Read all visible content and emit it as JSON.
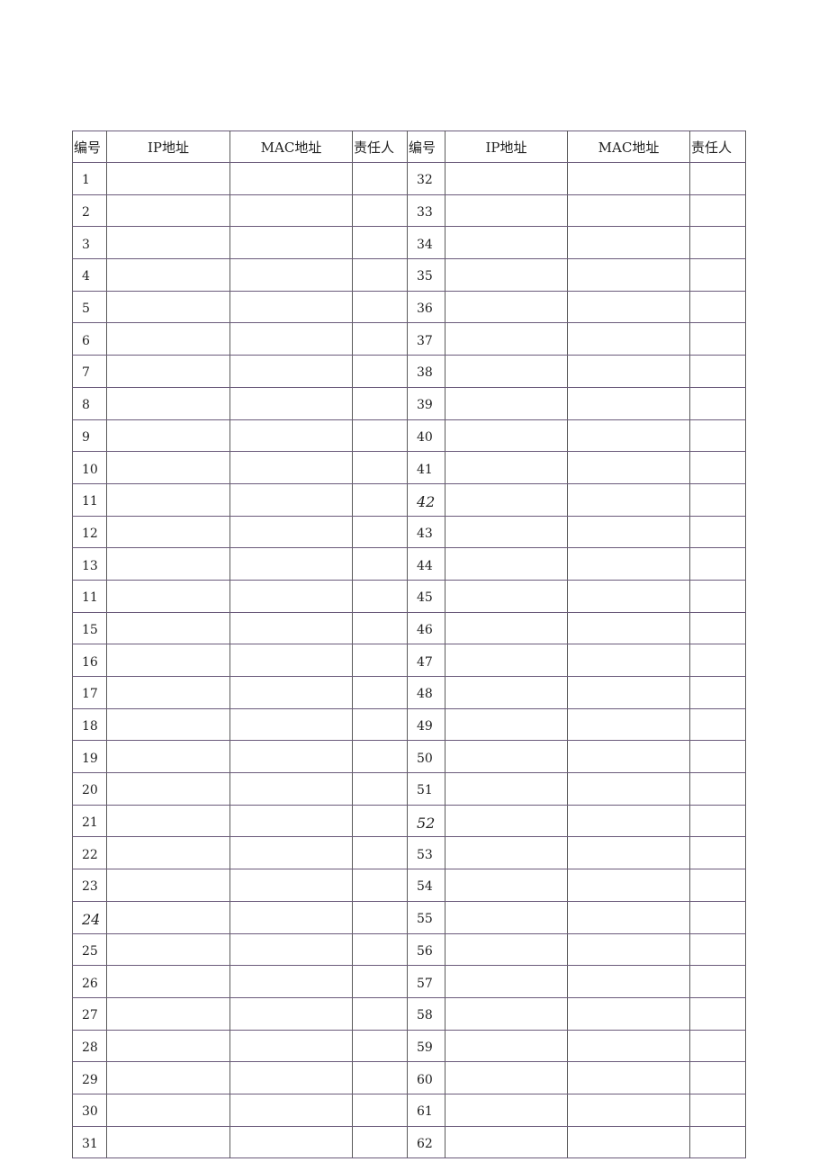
{
  "headers": [
    "编号",
    "IP地址",
    "MAC地址",
    "责任人",
    "编号",
    "IP地址",
    "MAC地址",
    "责任人"
  ],
  "rows": [
    {
      "left": "1",
      "right": "32"
    },
    {
      "left": "2",
      "right": "33"
    },
    {
      "left": "3",
      "right": "34"
    },
    {
      "left": "4",
      "right": "35"
    },
    {
      "left": "5",
      "right": "36"
    },
    {
      "left": "6",
      "right": "37"
    },
    {
      "left": "7",
      "right": "38"
    },
    {
      "left": "8",
      "right": "39"
    },
    {
      "left": "9",
      "right": "40"
    },
    {
      "left": "10",
      "right": "41"
    },
    {
      "left": "11",
      "right": "42",
      "right_italic": true
    },
    {
      "left": "12",
      "right": "43"
    },
    {
      "left": "13",
      "right": "44"
    },
    {
      "left": "11",
      "right": "45"
    },
    {
      "left": "15",
      "right": "46"
    },
    {
      "left": "16",
      "right": "47"
    },
    {
      "left": "17",
      "right": "48"
    },
    {
      "left": "18",
      "right": "49"
    },
    {
      "left": "19",
      "right": "50"
    },
    {
      "left": "20",
      "right": "51"
    },
    {
      "left": "21",
      "right": "52",
      "right_italic": true
    },
    {
      "left": "22",
      "right": "53"
    },
    {
      "left": "23",
      "right": "54"
    },
    {
      "left": "24",
      "right": "55",
      "left_italic": true
    },
    {
      "left": "25",
      "right": "56"
    },
    {
      "left": "26",
      "right": "57"
    },
    {
      "left": "27",
      "right": "58"
    },
    {
      "left": "28",
      "right": "59"
    },
    {
      "left": "29",
      "right": "60"
    },
    {
      "left": "30",
      "right": "61"
    },
    {
      "left": "31",
      "right": "62"
    }
  ]
}
